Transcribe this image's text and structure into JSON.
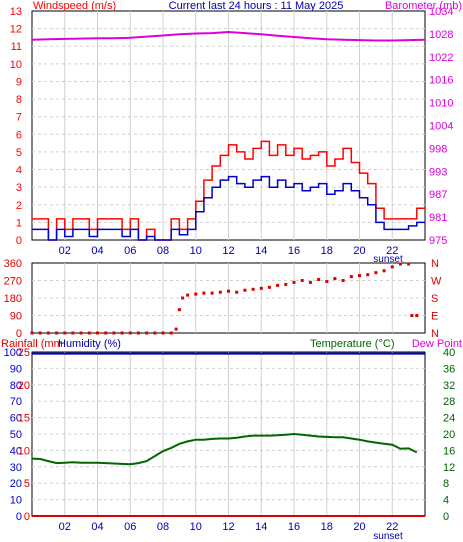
{
  "header": {
    "left_title": "Windspeed (m/s)",
    "center_title": "Current last 24 hours : 11 May 2025",
    "right_title": "Barometer (mb)"
  },
  "labels": {
    "sunset_top": "sunset",
    "sunset_bottom": "sunset",
    "rainfall_title": "Rainfall (mm",
    "humidity_title": "Humidity (%)",
    "temperature_title": "Temperature (°C)",
    "dewpoint_title": "Dew Point"
  },
  "colors": {
    "wind_gust": "#ff0000",
    "wind_avg": "#0000cc",
    "barometer": "#dd00dd",
    "direction": "#dd0000",
    "temperature": "#006600",
    "humidity": "#0000cc",
    "rainfall": "#dd0000",
    "grid": "#d0d0d0",
    "frame": "#000000"
  },
  "chart_data": [
    {
      "type": "line",
      "xlabel": "",
      "ylabel": "Windspeed (m/s)",
      "x_range": [
        0,
        24
      ],
      "x_ticks": [
        "02",
        "04",
        "06",
        "08",
        "10",
        "12",
        "14",
        "16",
        "18",
        "20",
        "22"
      ],
      "y_left_ticks": [
        "0",
        "1",
        "2",
        "3",
        "4",
        "5",
        "6",
        "7",
        "8",
        "9",
        "10",
        "11",
        "12",
        "13"
      ],
      "y_left_range": [
        0,
        13
      ],
      "y_right_ticks": [
        "975",
        "981",
        "987",
        "993",
        "998",
        "1004",
        "1010",
        "1016",
        "1022",
        "1028",
        "1034"
      ],
      "y_right_range": [
        975,
        1034
      ],
      "grid": true,
      "series": [
        {
          "name": "Gust",
          "axis": "left",
          "x": [
            0,
            0.5,
            1,
            1.5,
            2,
            2.5,
            3,
            3.5,
            4,
            4.5,
            5,
            5.5,
            6,
            6.5,
            7,
            7.5,
            8,
            8.5,
            9,
            9.5,
            10,
            10.5,
            11,
            11.5,
            12,
            12.5,
            13,
            13.5,
            14,
            14.5,
            15,
            15.5,
            16,
            16.5,
            17,
            17.5,
            18,
            18.5,
            19,
            19.5,
            20,
            20.5,
            21,
            21.5,
            22,
            22.5,
            23,
            23.5
          ],
          "y": [
            1.2,
            1.2,
            0,
            1.2,
            0.6,
            1.2,
            1.2,
            0.6,
            1.2,
            1.2,
            1.2,
            0.6,
            1.2,
            0,
            0.6,
            0,
            0,
            1.2,
            0.6,
            1.2,
            2.2,
            3.4,
            4.2,
            4.8,
            5.4,
            5.0,
            4.6,
            5.2,
            5.6,
            4.8,
            5.4,
            4.8,
            5.2,
            4.6,
            4.8,
            5.0,
            4.2,
            4.6,
            5.2,
            4.4,
            3.8,
            3.2,
            1.8,
            1.2,
            1.2,
            1.2,
            1.2,
            1.8
          ]
        },
        {
          "name": "Average",
          "axis": "left",
          "x": [
            0,
            0.5,
            1,
            1.5,
            2,
            2.5,
            3,
            3.5,
            4,
            4.5,
            5,
            5.5,
            6,
            6.5,
            7,
            7.5,
            8,
            8.5,
            9,
            9.5,
            10,
            10.5,
            11,
            11.5,
            12,
            12.5,
            13,
            13.5,
            14,
            14.5,
            15,
            15.5,
            16,
            16.5,
            17,
            17.5,
            18,
            18.5,
            19,
            19.5,
            20,
            20.5,
            21,
            21.5,
            22,
            22.5,
            23,
            23.5
          ],
          "y": [
            0.6,
            0.6,
            0,
            0.6,
            0.2,
            0.6,
            0.6,
            0.2,
            0.6,
            0.6,
            0.6,
            0.2,
            0.6,
            0,
            0.2,
            0,
            0,
            0.6,
            0.3,
            0.6,
            1.6,
            2.4,
            3.0,
            3.4,
            3.6,
            3.2,
            3.0,
            3.4,
            3.6,
            3.0,
            3.4,
            3.0,
            3.2,
            2.8,
            3.0,
            3.2,
            2.6,
            2.8,
            3.2,
            2.8,
            2.4,
            2.0,
            1.0,
            0.6,
            0.6,
            0.6,
            0.8,
            1.0
          ]
        },
        {
          "name": "Barometer",
          "axis": "right",
          "x": [
            0,
            1,
            2,
            3,
            4,
            5,
            6,
            7,
            8,
            9,
            10,
            11,
            12,
            13,
            14,
            15,
            16,
            17,
            18,
            19,
            20,
            21,
            22,
            23,
            24
          ],
          "y": [
            1026.6,
            1026.7,
            1026.8,
            1026.9,
            1027.0,
            1027.0,
            1027.1,
            1027.4,
            1027.7,
            1028.0,
            1028.2,
            1028.3,
            1028.6,
            1028.3,
            1028.0,
            1027.6,
            1027.3,
            1027.0,
            1026.7,
            1026.6,
            1026.5,
            1026.4,
            1026.4,
            1026.5,
            1026.6
          ]
        }
      ]
    },
    {
      "type": "scatter",
      "ylabel": "Wind direction",
      "x_range": [
        0,
        24
      ],
      "y_left_ticks": [
        "0",
        "90",
        "180",
        "270",
        "360"
      ],
      "y_left_range": [
        0,
        360
      ],
      "y_right_ticks": [
        "N",
        "E",
        "S",
        "W",
        "N"
      ],
      "y_right_range": [
        0,
        360
      ],
      "grid": true,
      "series": [
        {
          "name": "Direction",
          "x": [
            0,
            0.5,
            1,
            1.5,
            2,
            2.5,
            3,
            3.5,
            4,
            4.5,
            5,
            5.5,
            6,
            6.5,
            7,
            7.5,
            8,
            8.5,
            8.8,
            9,
            9.2,
            9.5,
            10,
            10.5,
            11,
            11.5,
            12,
            12.5,
            13,
            13.5,
            14,
            14.5,
            15,
            15.5,
            16,
            16.5,
            17,
            17.5,
            18,
            18.5,
            19,
            19.5,
            20,
            20.5,
            21,
            21.5,
            22,
            22.5,
            23,
            23.2,
            23.5
          ],
          "y": [
            0,
            0,
            0,
            0,
            0,
            0,
            0,
            0,
            0,
            0,
            0,
            0,
            0,
            0,
            0,
            0,
            0,
            0,
            20,
            120,
            180,
            195,
            200,
            205,
            205,
            210,
            215,
            210,
            220,
            225,
            230,
            235,
            245,
            250,
            260,
            270,
            260,
            275,
            265,
            280,
            270,
            290,
            295,
            300,
            310,
            320,
            340,
            355,
            355,
            90,
            90
          ]
        }
      ]
    },
    {
      "type": "line",
      "xlabel": "",
      "x_range": [
        0,
        24
      ],
      "x_ticks": [
        "02",
        "04",
        "06",
        "08",
        "10",
        "12",
        "14",
        "16",
        "18",
        "20",
        "22"
      ],
      "y_left_ticks": [
        "0",
        "10",
        "20",
        "30",
        "40",
        "50",
        "60",
        "70",
        "80",
        "90",
        "100"
      ],
      "y_left_range": [
        0,
        100
      ],
      "y_rain_ticks": [
        "0",
        "5",
        "10",
        "15",
        "20",
        "25"
      ],
      "y_rain_range": [
        0,
        25
      ],
      "y_right_ticks": [
        "0",
        "4",
        "8",
        "12",
        "16",
        "20",
        "24",
        "28",
        "32",
        "36",
        "40"
      ],
      "y_right_range": [
        0,
        40
      ],
      "grid": true,
      "series": [
        {
          "name": "Temperature",
          "axis": "right",
          "x": [
            0,
            0.5,
            1,
            1.5,
            2,
            2.5,
            3,
            3.5,
            4,
            4.5,
            5,
            5.5,
            6,
            6.5,
            7,
            7.5,
            8,
            8.5,
            9,
            9.5,
            10,
            10.5,
            11,
            11.5,
            12,
            12.5,
            13,
            13.5,
            14,
            14.5,
            15,
            15.5,
            16,
            16.5,
            17,
            17.5,
            18,
            18.5,
            19,
            19.5,
            20,
            20.5,
            21,
            21.5,
            22,
            22.5,
            23,
            23.5
          ],
          "y": [
            14.0,
            13.9,
            13.4,
            12.9,
            13.0,
            13.1,
            13.0,
            13.0,
            13.0,
            12.9,
            12.8,
            12.7,
            12.6,
            12.9,
            13.4,
            14.6,
            15.8,
            16.6,
            17.6,
            18.2,
            18.6,
            18.6,
            18.8,
            18.9,
            18.9,
            19.1,
            19.4,
            19.6,
            19.6,
            19.6,
            19.7,
            19.8,
            20.0,
            19.8,
            19.6,
            19.4,
            19.3,
            19.2,
            19.2,
            18.9,
            18.6,
            18.2,
            17.9,
            17.6,
            17.4,
            16.4,
            16.5,
            15.5
          ]
        },
        {
          "name": "Humidity",
          "axis": "left",
          "x": [
            0,
            24
          ],
          "y": [
            99,
            99
          ]
        },
        {
          "name": "Rainfall",
          "axis": "rain",
          "x": [
            0,
            24
          ],
          "y": [
            0,
            0
          ]
        }
      ]
    }
  ]
}
